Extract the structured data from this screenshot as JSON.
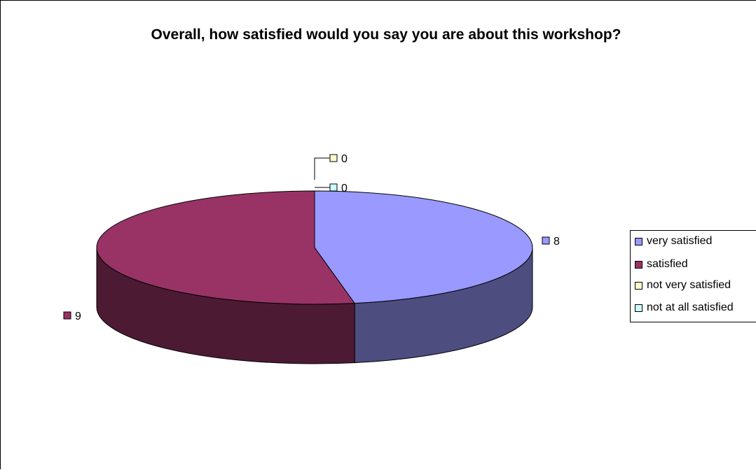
{
  "chart_data": {
    "type": "pie",
    "title": "Overall, how satisfied would you say you are about this workshop?",
    "categories": [
      "very satisfied",
      "satisfied",
      "not very satisfied",
      "not at all satisfied"
    ],
    "values": [
      8,
      9,
      0,
      0
    ],
    "data_labels": [
      "8",
      "9",
      "0",
      "0"
    ],
    "colors": [
      "#9999FF",
      "#993366",
      "#FFFFCC",
      "#CCFFFF"
    ],
    "side_colors": [
      "#4D4D80",
      "#4D1A33",
      "#808066",
      "#668080"
    ],
    "style": "3d",
    "legend_position": "right"
  }
}
